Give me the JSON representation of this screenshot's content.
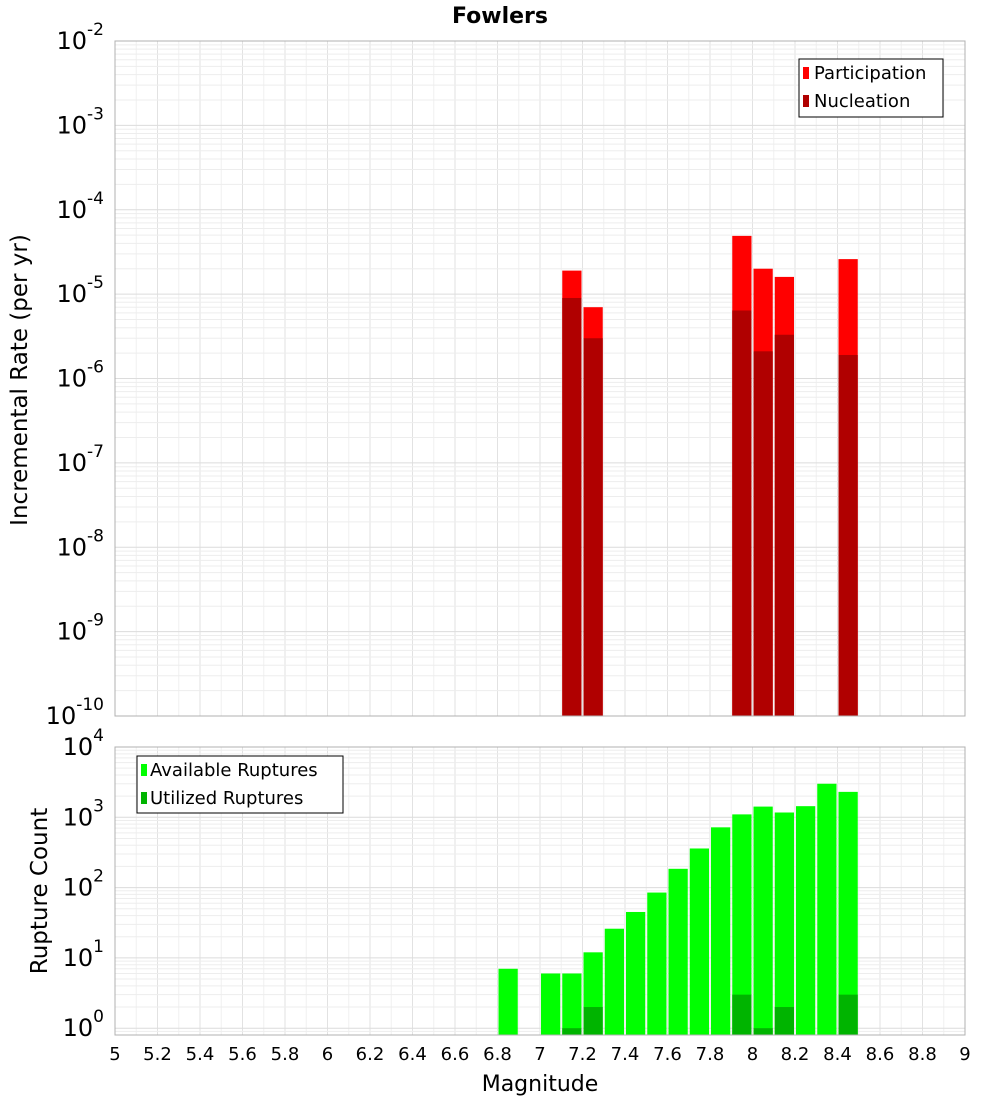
{
  "colors": {
    "participation": "#ff0000",
    "nucleation": "#b00000",
    "available": "#00ff00",
    "utilized": "#00b400",
    "grid": "#e6e6e6",
    "axis": "#b0b0b0"
  },
  "chart_data": {
    "title": "Fowlers",
    "xlabel": "Magnitude",
    "xlim": [
      5,
      9
    ],
    "xticks": [
      "5",
      "5.2",
      "5.4",
      "5.6",
      "5.8",
      "6",
      "6.2",
      "6.4",
      "6.6",
      "6.8",
      "7",
      "7.2",
      "7.4",
      "7.6",
      "7.8",
      "8",
      "8.2",
      "8.4",
      "8.6",
      "8.8",
      "9"
    ],
    "bin_width": 0.1,
    "panels": [
      {
        "name": "rate",
        "type": "bar",
        "yscale": "log",
        "ylabel": "Incremental Rate (per yr)",
        "ylim_exp": [
          -10,
          -2
        ],
        "ytick_exps": [
          "-10",
          "-9",
          "-8",
          "-7",
          "-6",
          "-5",
          "-4",
          "-3",
          "-2"
        ],
        "legend_position": "top-right",
        "series": [
          {
            "name": "Participation",
            "color_key": "participation",
            "points": [
              [
                7.15,
                1.9e-05
              ],
              [
                7.25,
                7e-06
              ],
              [
                7.95,
                4.9e-05
              ],
              [
                8.05,
                2e-05
              ],
              [
                8.15,
                1.6e-05
              ],
              [
                8.45,
                2.6e-05
              ]
            ]
          },
          {
            "name": "Nucleation",
            "color_key": "nucleation",
            "points": [
              [
                7.15,
                9e-06
              ],
              [
                7.25,
                3e-06
              ],
              [
                7.95,
                6.4e-06
              ],
              [
                8.05,
                2.1e-06
              ],
              [
                8.15,
                3.3e-06
              ],
              [
                8.45,
                1.9e-06
              ]
            ]
          }
        ]
      },
      {
        "name": "count",
        "type": "bar",
        "yscale": "log",
        "ylabel": "Rupture Count",
        "ylim": [
          0.8,
          10000
        ],
        "ytick_exps": [
          "0",
          "1",
          "2",
          "3",
          "4"
        ],
        "legend_position": "top-left",
        "series": [
          {
            "name": "Available Ruptures",
            "color_key": "available",
            "points": [
              [
                6.85,
                7
              ],
              [
                7.05,
                6
              ],
              [
                7.15,
                6
              ],
              [
                7.25,
                12
              ],
              [
                7.35,
                26
              ],
              [
                7.45,
                45
              ],
              [
                7.55,
                85
              ],
              [
                7.65,
                185
              ],
              [
                7.75,
                360
              ],
              [
                7.85,
                720
              ],
              [
                7.95,
                1100
              ],
              [
                8.05,
                1420
              ],
              [
                8.15,
                1170
              ],
              [
                8.25,
                1440
              ],
              [
                8.35,
                3000
              ],
              [
                8.45,
                2300
              ]
            ]
          },
          {
            "name": "Utilized Ruptures",
            "color_key": "utilized",
            "points": [
              [
                7.15,
                1
              ],
              [
                7.25,
                2
              ],
              [
                7.95,
                3
              ],
              [
                8.05,
                1
              ],
              [
                8.15,
                2
              ],
              [
                8.45,
                3
              ]
            ]
          }
        ]
      }
    ]
  }
}
